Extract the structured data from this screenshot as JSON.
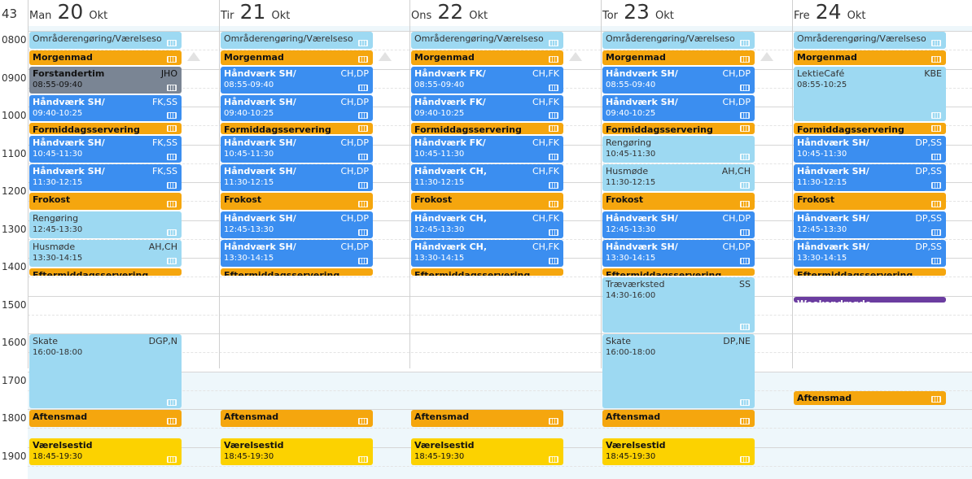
{
  "week_label": "43",
  "days": [
    {
      "name": "Man",
      "date": "20",
      "month": "Okt"
    },
    {
      "name": "Tir",
      "date": "21",
      "month": "Okt"
    },
    {
      "name": "Ons",
      "date": "22",
      "month": "Okt"
    },
    {
      "name": "Tor",
      "date": "23",
      "month": "Okt"
    },
    {
      "name": "Fre",
      "date": "24",
      "month": "Okt"
    }
  ],
  "hours": [
    "0800",
    "0900",
    "1000",
    "1100",
    "1200",
    "1300",
    "1400",
    "1500",
    "1600",
    "1700",
    "1800",
    "1900"
  ],
  "events": [
    {
      "day": 0,
      "title": "Områderengøring/Værelseso",
      "time": "",
      "who": "",
      "color": "light",
      "start": "08:00",
      "end": "08:30"
    },
    {
      "day": 0,
      "title": "Morgenmad",
      "time": "",
      "who": "",
      "color": "orange",
      "start": "08:30",
      "end": "08:55"
    },
    {
      "day": 0,
      "title": "Forstandertim",
      "time": "08:55-09:40",
      "who": "JHO",
      "color": "gray",
      "start": "08:55",
      "end": "09:40"
    },
    {
      "day": 0,
      "title": "Håndværk SH/",
      "time": "09:40-10:25",
      "who": "FK,SS",
      "color": "blue",
      "start": "09:40",
      "end": "10:25"
    },
    {
      "day": 0,
      "title": "Formiddagsservering",
      "time": "",
      "who": "",
      "color": "orange",
      "start": "10:25",
      "end": "10:45"
    },
    {
      "day": 0,
      "title": "Håndværk SH/",
      "time": "10:45-11:30",
      "who": "FK,SS",
      "color": "blue",
      "start": "10:45",
      "end": "11:30"
    },
    {
      "day": 0,
      "title": "Håndværk SH/",
      "time": "11:30-12:15",
      "who": "FK,SS",
      "color": "blue",
      "start": "11:30",
      "end": "12:15"
    },
    {
      "day": 0,
      "title": "Frokost",
      "time": "",
      "who": "",
      "color": "orange",
      "start": "12:15",
      "end": "12:45"
    },
    {
      "day": 0,
      "title": "Rengøring",
      "time": "12:45-13:30",
      "who": "",
      "color": "light",
      "start": "12:45",
      "end": "13:30"
    },
    {
      "day": 0,
      "title": "Husmøde",
      "time": "13:30-14:15",
      "who": "AH,CH",
      "color": "light",
      "start": "13:30",
      "end": "14:15"
    },
    {
      "day": 0,
      "title": "Eftermiddagsservering",
      "time": "",
      "who": "",
      "color": "orange",
      "start": "14:15",
      "end": "14:30"
    },
    {
      "day": 0,
      "title": "Skate",
      "time": "16:00-18:00",
      "who": "DGP,N",
      "color": "light",
      "start": "16:00",
      "end": "18:00"
    },
    {
      "day": 0,
      "title": "Aftensmad",
      "time": "",
      "who": "",
      "color": "orange",
      "start": "18:00",
      "end": "18:30"
    },
    {
      "day": 0,
      "title": "Værelsestid",
      "time": "18:45-19:30",
      "who": "",
      "color": "yellow",
      "start": "18:45",
      "end": "19:30"
    },
    {
      "day": 1,
      "title": "Områderengøring/Værelseso",
      "time": "",
      "who": "",
      "color": "light",
      "start": "08:00",
      "end": "08:30"
    },
    {
      "day": 1,
      "title": "Morgenmad",
      "time": "",
      "who": "",
      "color": "orange",
      "start": "08:30",
      "end": "08:55"
    },
    {
      "day": 1,
      "title": "Håndværk SH/",
      "time": "08:55-09:40",
      "who": "CH,DP",
      "color": "blue",
      "start": "08:55",
      "end": "09:40"
    },
    {
      "day": 1,
      "title": "Håndværk SH/",
      "time": "09:40-10:25",
      "who": "CH,DP",
      "color": "blue",
      "start": "09:40",
      "end": "10:25"
    },
    {
      "day": 1,
      "title": "Formiddagsservering",
      "time": "",
      "who": "",
      "color": "orange",
      "start": "10:25",
      "end": "10:45"
    },
    {
      "day": 1,
      "title": "Håndværk SH/",
      "time": "10:45-11:30",
      "who": "CH,DP",
      "color": "blue",
      "start": "10:45",
      "end": "11:30"
    },
    {
      "day": 1,
      "title": "Håndværk SH/",
      "time": "11:30-12:15",
      "who": "CH,DP",
      "color": "blue",
      "start": "11:30",
      "end": "12:15"
    },
    {
      "day": 1,
      "title": "Frokost",
      "time": "",
      "who": "",
      "color": "orange",
      "start": "12:15",
      "end": "12:45"
    },
    {
      "day": 1,
      "title": "Håndværk SH/",
      "time": "12:45-13:30",
      "who": "CH,DP",
      "color": "blue",
      "start": "12:45",
      "end": "13:30"
    },
    {
      "day": 1,
      "title": "Håndværk SH/",
      "time": "13:30-14:15",
      "who": "CH,DP",
      "color": "blue",
      "start": "13:30",
      "end": "14:15"
    },
    {
      "day": 1,
      "title": "Eftermiddagsservering",
      "time": "",
      "who": "",
      "color": "orange",
      "start": "14:15",
      "end": "14:30"
    },
    {
      "day": 1,
      "title": "Aftensmad",
      "time": "",
      "who": "",
      "color": "orange",
      "start": "18:00",
      "end": "18:30"
    },
    {
      "day": 1,
      "title": "Værelsestid",
      "time": "18:45-19:30",
      "who": "",
      "color": "yellow",
      "start": "18:45",
      "end": "19:30"
    },
    {
      "day": 2,
      "title": "Områderengøring/Værelseso",
      "time": "",
      "who": "",
      "color": "light",
      "start": "08:00",
      "end": "08:30"
    },
    {
      "day": 2,
      "title": "Morgenmad",
      "time": "",
      "who": "",
      "color": "orange",
      "start": "08:30",
      "end": "08:55"
    },
    {
      "day": 2,
      "title": "Håndværk FK/",
      "time": "08:55-09:40",
      "who": "CH,FK",
      "color": "blue",
      "start": "08:55",
      "end": "09:40"
    },
    {
      "day": 2,
      "title": "Håndværk FK/",
      "time": "09:40-10:25",
      "who": "CH,FK",
      "color": "blue",
      "start": "09:40",
      "end": "10:25"
    },
    {
      "day": 2,
      "title": "Formiddagsservering",
      "time": "",
      "who": "",
      "color": "orange",
      "start": "10:25",
      "end": "10:45"
    },
    {
      "day": 2,
      "title": "Håndværk FK/",
      "time": "10:45-11:30",
      "who": "CH,FK",
      "color": "blue",
      "start": "10:45",
      "end": "11:30"
    },
    {
      "day": 2,
      "title": "Håndværk CH,",
      "time": "11:30-12:15",
      "who": "CH,FK",
      "color": "blue",
      "start": "11:30",
      "end": "12:15"
    },
    {
      "day": 2,
      "title": "Frokost",
      "time": "",
      "who": "",
      "color": "orange",
      "start": "12:15",
      "end": "12:45"
    },
    {
      "day": 2,
      "title": "Håndværk CH,",
      "time": "12:45-13:30",
      "who": "CH,FK",
      "color": "blue",
      "start": "12:45",
      "end": "13:30"
    },
    {
      "day": 2,
      "title": "Håndværk CH,",
      "time": "13:30-14:15",
      "who": "CH,FK",
      "color": "blue",
      "start": "13:30",
      "end": "14:15"
    },
    {
      "day": 2,
      "title": "Eftermiddagsservering",
      "time": "",
      "who": "",
      "color": "orange",
      "start": "14:15",
      "end": "14:30"
    },
    {
      "day": 2,
      "title": "Aftensmad",
      "time": "",
      "who": "",
      "color": "orange",
      "start": "18:00",
      "end": "18:30"
    },
    {
      "day": 2,
      "title": "Værelsestid",
      "time": "18:45-19:30",
      "who": "",
      "color": "yellow",
      "start": "18:45",
      "end": "19:30"
    },
    {
      "day": 3,
      "title": "Områderengøring/Værelseso",
      "time": "",
      "who": "",
      "color": "light",
      "start": "08:00",
      "end": "08:30"
    },
    {
      "day": 3,
      "title": "Morgenmad",
      "time": "",
      "who": "",
      "color": "orange",
      "start": "08:30",
      "end": "08:55"
    },
    {
      "day": 3,
      "title": "Håndværk SH/",
      "time": "08:55-09:40",
      "who": "CH,DP",
      "color": "blue",
      "start": "08:55",
      "end": "09:40"
    },
    {
      "day": 3,
      "title": "Håndværk SH/",
      "time": "09:40-10:25",
      "who": "CH,DP",
      "color": "blue",
      "start": "09:40",
      "end": "10:25"
    },
    {
      "day": 3,
      "title": "Formiddagsservering",
      "time": "",
      "who": "",
      "color": "orange",
      "start": "10:25",
      "end": "10:45"
    },
    {
      "day": 3,
      "title": "Rengøring",
      "time": "10:45-11:30",
      "who": "",
      "color": "light",
      "start": "10:45",
      "end": "11:30"
    },
    {
      "day": 3,
      "title": "Husmøde",
      "time": "11:30-12:15",
      "who": "AH,CH",
      "color": "light",
      "start": "11:30",
      "end": "12:15"
    },
    {
      "day": 3,
      "title": "Frokost",
      "time": "",
      "who": "",
      "color": "orange",
      "start": "12:15",
      "end": "12:45"
    },
    {
      "day": 3,
      "title": "Håndværk SH/",
      "time": "12:45-13:30",
      "who": "CH,DP",
      "color": "blue",
      "start": "12:45",
      "end": "13:30"
    },
    {
      "day": 3,
      "title": "Håndværk SH/",
      "time": "13:30-14:15",
      "who": "CH,DP",
      "color": "blue",
      "start": "13:30",
      "end": "14:15"
    },
    {
      "day": 3,
      "title": "Eftermiddagsservering",
      "time": "",
      "who": "",
      "color": "orange",
      "start": "14:15",
      "end": "14:30"
    },
    {
      "day": 3,
      "title": "Træværksted",
      "time": "14:30-16:00",
      "who": "SS",
      "color": "light",
      "start": "14:30",
      "end": "16:00"
    },
    {
      "day": 3,
      "title": "Skate",
      "time": "16:00-18:00",
      "who": "DP,NE",
      "color": "light",
      "start": "16:00",
      "end": "18:00"
    },
    {
      "day": 3,
      "title": "Aftensmad",
      "time": "",
      "who": "",
      "color": "orange",
      "start": "18:00",
      "end": "18:30"
    },
    {
      "day": 3,
      "title": "Værelsestid",
      "time": "18:45-19:30",
      "who": "",
      "color": "yellow",
      "start": "18:45",
      "end": "19:30"
    },
    {
      "day": 4,
      "title": "Områderengøring/Værelseso",
      "time": "",
      "who": "",
      "color": "light",
      "start": "08:00",
      "end": "08:30"
    },
    {
      "day": 4,
      "title": "Morgenmad",
      "time": "",
      "who": "",
      "color": "orange",
      "start": "08:30",
      "end": "08:55"
    },
    {
      "day": 4,
      "title": "LektieCafé",
      "time": "08:55-10:25",
      "who": "KBE",
      "color": "light",
      "start": "08:55",
      "end": "10:25"
    },
    {
      "day": 4,
      "title": "Formiddagsservering",
      "time": "",
      "who": "",
      "color": "orange",
      "start": "10:25",
      "end": "10:45"
    },
    {
      "day": 4,
      "title": "Håndværk SH/",
      "time": "10:45-11:30",
      "who": "DP,SS",
      "color": "blue",
      "start": "10:45",
      "end": "11:30"
    },
    {
      "day": 4,
      "title": "Håndværk SH/",
      "time": "11:30-12:15",
      "who": "DP,SS",
      "color": "blue",
      "start": "11:30",
      "end": "12:15"
    },
    {
      "day": 4,
      "title": "Frokost",
      "time": "",
      "who": "",
      "color": "orange",
      "start": "12:15",
      "end": "12:45"
    },
    {
      "day": 4,
      "title": "Håndværk SH/",
      "time": "12:45-13:30",
      "who": "DP,SS",
      "color": "blue",
      "start": "12:45",
      "end": "13:30"
    },
    {
      "day": 4,
      "title": "Håndværk SH/",
      "time": "13:30-14:15",
      "who": "DP,SS",
      "color": "blue",
      "start": "13:30",
      "end": "14:15"
    },
    {
      "day": 4,
      "title": "Eftermiddagsservering",
      "time": "",
      "who": "",
      "color": "orange",
      "start": "14:15",
      "end": "14:30"
    },
    {
      "day": 4,
      "title": "Weekendmøde",
      "time": "",
      "who": "",
      "color": "purple",
      "start": "15:00",
      "end": "15:10"
    },
    {
      "day": 4,
      "title": "Aftensmad",
      "time": "",
      "who": "",
      "color": "orange",
      "start": "17:30",
      "end": "17:55"
    }
  ]
}
